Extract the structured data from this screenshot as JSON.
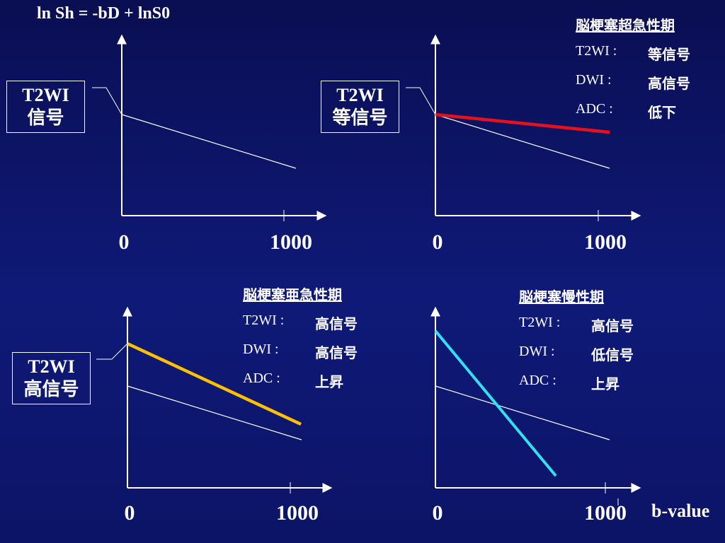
{
  "title": "ln Sh = -bD + lnS0",
  "axis_labels": {
    "zero": "0",
    "thousand": "1000",
    "bvalue": "b-value"
  },
  "colors": {
    "background": "#0f1a78",
    "white": "#ffffff",
    "red": "#e8101c",
    "orange": "#ffc000",
    "cyan": "#33e0f0"
  },
  "boxes": {
    "tl": {
      "line1": "T2WI",
      "line2": "信号"
    },
    "tr": {
      "line1": "T2WI",
      "line2": "等信号"
    },
    "bl": {
      "line1": "T2WI",
      "line2": "高信号"
    }
  },
  "legends": {
    "tr": {
      "title": "脳梗塞超急性期",
      "rows": [
        {
          "label": "T2WI :",
          "value": "等信号"
        },
        {
          "label": "DWI :",
          "value": "高信号"
        },
        {
          "label": "ADC :",
          "value": "低下"
        }
      ]
    },
    "bl": {
      "title": "脳梗塞亜急性期",
      "rows": [
        {
          "label": "T2WI :",
          "value": "高信号"
        },
        {
          "label": "DWI :",
          "value": "高信号"
        },
        {
          "label": "ADC :",
          "value": "上昇"
        }
      ]
    },
    "br": {
      "title": "脳梗塞慢性期",
      "rows": [
        {
          "label": "T2WI :",
          "value": "高信号"
        },
        {
          "label": "DWI :",
          "value": "低信号"
        },
        {
          "label": "ADC :",
          "value": "上昇"
        }
      ]
    }
  }
}
